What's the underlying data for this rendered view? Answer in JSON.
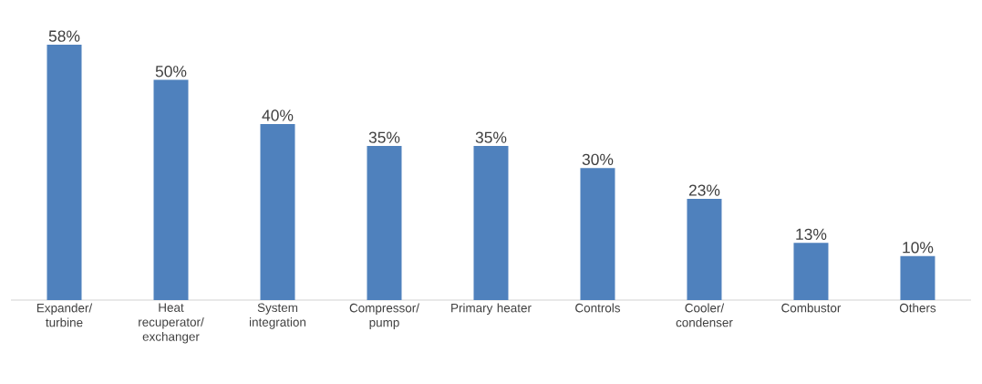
{
  "chart_data": {
    "type": "bar",
    "categories": [
      "Expander/ turbine",
      "Heat recuperator/ exchanger",
      "System integration",
      "Compressor/ pump",
      "Primary heater",
      "Controls",
      "Cooler/ condenser",
      "Combustor",
      "Others"
    ],
    "values": [
      58,
      50,
      40,
      35,
      35,
      30,
      23,
      13,
      10
    ],
    "value_labels": [
      "58%",
      "50%",
      "40%",
      "35%",
      "35%",
      "30%",
      "23%",
      "13%",
      "10%"
    ],
    "color": "#4f81bd"
  }
}
